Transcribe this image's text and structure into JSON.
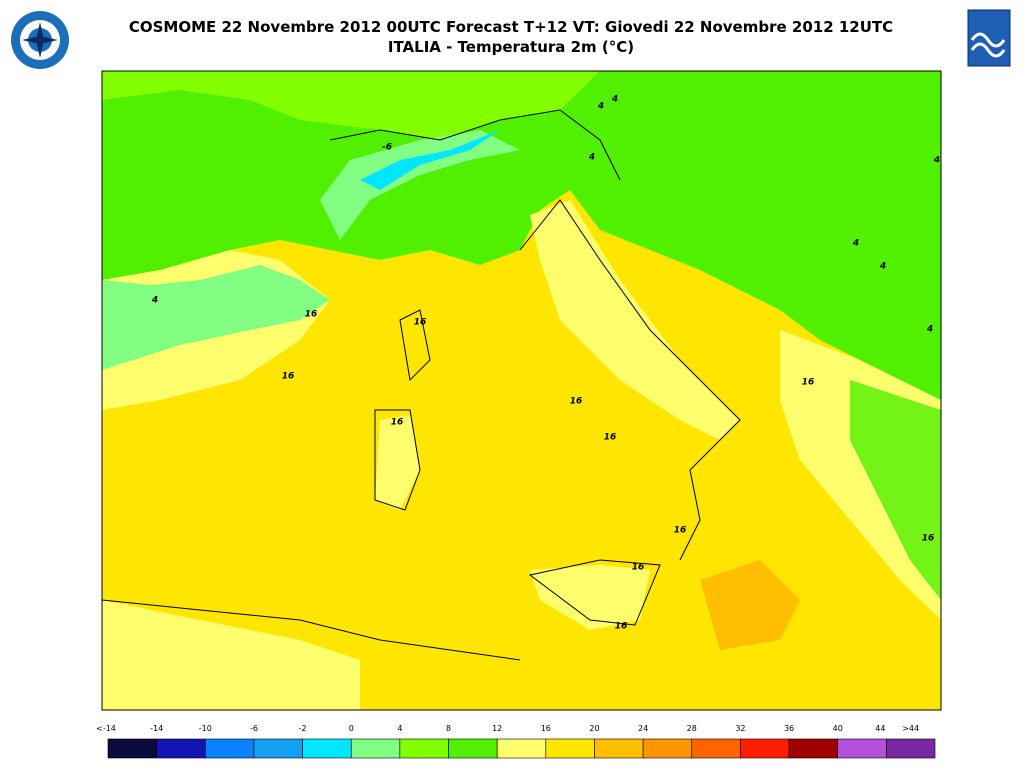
{
  "header": {
    "title": "COSMOME 22 Novembre 2012 00UTC Forecast T+12 VT: Giovedi 22 Novembre 2012 12UTC",
    "subtitle": "ITALIA - Temperatura 2m (°C)"
  },
  "map": {
    "contour_labels": [
      "4",
      "4",
      "4",
      "4",
      "4",
      "4",
      "4",
      "4",
      "-6",
      "16",
      "16",
      "16",
      "16",
      "16",
      "16",
      "16",
      "16",
      "16",
      "16",
      "16"
    ]
  },
  "colorbar": {
    "labels": [
      "<-14",
      "-14",
      "-10",
      "-6",
      "-2",
      "0",
      "4",
      "8",
      "12",
      "16",
      "20",
      "24",
      "28",
      "32",
      "36",
      "40",
      "44",
      ">44"
    ],
    "colors": [
      "#0a0a3c",
      "#1414b4",
      "#0a82ff",
      "#14a0f0",
      "#00e6ff",
      "#82ff82",
      "#82ff00",
      "#50f000",
      "#ffff6e",
      "#ffe600",
      "#ffbe00",
      "#ff9600",
      "#ff6400",
      "#ff1e00",
      "#a00000",
      "#b450dc",
      "#7828a0"
    ]
  }
}
